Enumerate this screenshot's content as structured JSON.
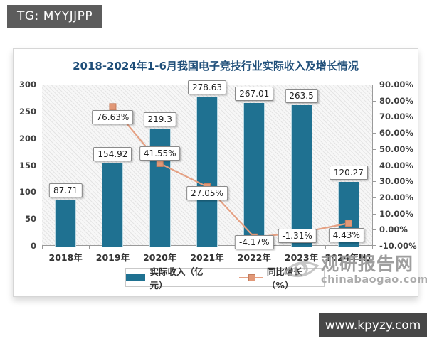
{
  "badges": {
    "tg_label": "TG: MYYJJPP",
    "website_label": "www.kpyzy.com"
  },
  "watermark": {
    "site_name": "观研报告网",
    "site_domain": "chinabaogao.com"
  },
  "colors": {
    "bar": "#1F7191",
    "line": "#E5A184",
    "marker_fill": "#E29877",
    "marker_stroke": "#C47E5F",
    "title": "#1F4E79"
  },
  "chart_data": {
    "type": "bar+line",
    "title": "2018-2024年1-6月我国电子竞技行业实际收入及增长情况",
    "categories": [
      "2018年",
      "2019年",
      "2020年",
      "2021年",
      "2022年",
      "2023年",
      "2024年H1"
    ],
    "series": [
      {
        "name": "实际收入（亿元）",
        "type": "bar",
        "axis": "left",
        "values": [
          87.71,
          154.92,
          219.3,
          278.63,
          267.01,
          263.5,
          120.27
        ],
        "value_labels": [
          "87.71",
          "154.92",
          "219.3",
          "278.63",
          "267.01",
          "263.5",
          "120.27"
        ]
      },
      {
        "name": "同比增长（%）",
        "type": "line",
        "axis": "right",
        "values": [
          null,
          76.63,
          41.55,
          27.05,
          -4.17,
          -1.31,
          4.43
        ],
        "value_labels": [
          null,
          "76.63%",
          "41.55%",
          "27.05%",
          "-4.17%",
          "-1.31%",
          "4.43%"
        ]
      }
    ],
    "left_axis": {
      "min": 0,
      "max": 300,
      "step": 50,
      "ticks": [
        "300",
        "250",
        "200",
        "150",
        "100",
        "50",
        "0"
      ]
    },
    "right_axis": {
      "min": -10,
      "max": 90,
      "step": 10,
      "ticks": [
        "90.00%",
        "80.00%",
        "70.00%",
        "60.00%",
        "50.00%",
        "40.00%",
        "30.00%",
        "20.00%",
        "10.00%",
        "0.00%",
        "-10.00%"
      ]
    },
    "legend_position": "bottom",
    "grid": false,
    "plot_background": "diagonal-hatch"
  }
}
